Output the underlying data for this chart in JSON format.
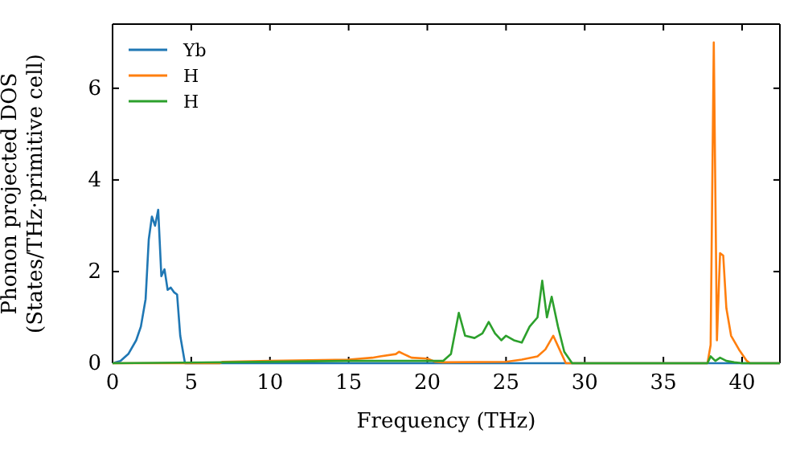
{
  "chart_data": {
    "type": "line",
    "xlabel": "Frequency (THz)",
    "ylabel": "Phonon projected DOS\n(States/THz·primitive cell)",
    "xlim": [
      0,
      42.4
    ],
    "ylim": [
      0,
      7.4
    ],
    "xticks": [
      0,
      5,
      10,
      15,
      20,
      25,
      30,
      35,
      40
    ],
    "yticks": [
      0,
      2,
      4,
      6
    ],
    "legend": "top left",
    "grid": false,
    "series": [
      {
        "name": "Yb",
        "color": "#1f77b4",
        "x": [
          0,
          0.5,
          1,
          1.5,
          1.8,
          2.1,
          2.3,
          2.5,
          2.7,
          2.9,
          3.1,
          3.3,
          3.5,
          3.7,
          3.9,
          4.1,
          4.3,
          4.6,
          5,
          42.4
        ],
        "values": [
          0,
          0.05,
          0.2,
          0.5,
          0.8,
          1.4,
          2.7,
          3.2,
          3.0,
          3.35,
          1.9,
          2.05,
          1.6,
          1.65,
          1.55,
          1.5,
          0.6,
          0,
          0,
          0
        ]
      },
      {
        "name": "H",
        "color": "#ff7f0e",
        "x": [
          0,
          6.8,
          7,
          10,
          15,
          16.5,
          17,
          18,
          18.2,
          18.5,
          19,
          20,
          20.5,
          21,
          25,
          26,
          27,
          27.5,
          28,
          28.4,
          28.8,
          37.8,
          38,
          38.2,
          38.4,
          38.6,
          38.8,
          39,
          39.3,
          39.8,
          40.3,
          40.5,
          42.4
        ],
        "values": [
          0,
          0,
          0.03,
          0.05,
          0.08,
          0.12,
          0.15,
          0.2,
          0.25,
          0.2,
          0.12,
          0.1,
          0.03,
          0.02,
          0.03,
          0.08,
          0.15,
          0.3,
          0.6,
          0.3,
          0,
          0,
          0.4,
          7.0,
          0.5,
          2.4,
          2.35,
          1.2,
          0.6,
          0.3,
          0.05,
          0,
          0
        ]
      },
      {
        "name": "H",
        "color": "#2ca02c",
        "x": [
          0,
          7,
          15,
          20.5,
          21,
          21.5,
          22,
          22.4,
          23,
          23.5,
          23.9,
          24.3,
          24.7,
          25,
          25.5,
          26,
          26.5,
          27,
          27.3,
          27.6,
          27.9,
          28.3,
          28.7,
          29.2,
          37.8,
          38,
          38.3,
          38.6,
          39,
          39.5,
          40,
          42.4
        ],
        "values": [
          0,
          0.02,
          0.05,
          0.05,
          0.05,
          0.2,
          1.1,
          0.6,
          0.55,
          0.65,
          0.9,
          0.65,
          0.5,
          0.6,
          0.5,
          0.45,
          0.8,
          1.0,
          1.8,
          1.0,
          1.45,
          0.8,
          0.25,
          0,
          0,
          0.15,
          0.05,
          0.12,
          0.05,
          0.02,
          0,
          0
        ]
      }
    ]
  }
}
